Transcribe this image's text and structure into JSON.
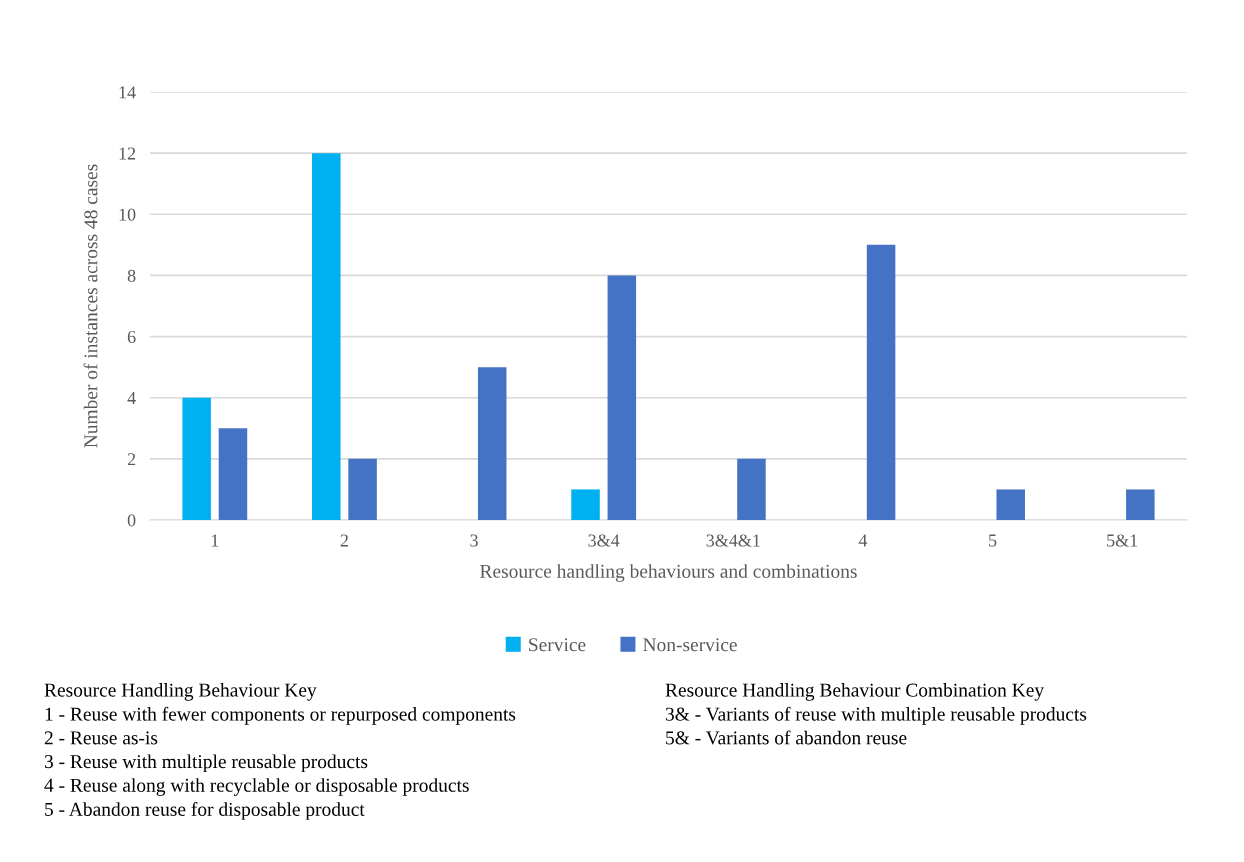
{
  "chart_data": {
    "type": "bar",
    "xlabel": "Resource handling behaviours and combinations",
    "ylabel": "Number of instances across 48 cases",
    "categories": [
      "1",
      "2",
      "3",
      "3&4",
      "3&4&1",
      "4",
      "5",
      "5&1"
    ],
    "series": [
      {
        "name": "Service",
        "color": "#00b0f0",
        "values": [
          4,
          12,
          null,
          1,
          null,
          null,
          null,
          null
        ]
      },
      {
        "name": "Non-service",
        "color": "#4472c4",
        "values": [
          3,
          2,
          5,
          8,
          2,
          9,
          1,
          1
        ]
      }
    ],
    "ylim": [
      0,
      14
    ],
    "yticks": [
      0,
      2,
      4,
      6,
      8,
      10,
      12,
      14
    ],
    "grid": "y",
    "legend": "bottom",
    "annotations": [
      "Resource Handling Behaviour Key\n1 - Reuse with fewer components or repurposed components\n2 - Reuse as-is\n3 - Reuse with multiple reusable products\n4 - Reuse along with recyclable or disposable products\n5 - Abandon reuse for disposable product",
      "Resource Handling Behaviour Combination Key\n3& - Variants of reuse with multiple reusable products\n5& - Variants of abandon reuse"
    ]
  }
}
